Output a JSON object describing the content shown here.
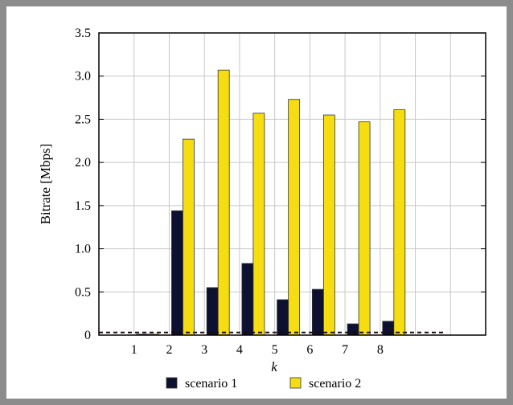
{
  "chart_data": {
    "type": "bar",
    "title": "",
    "xlabel": "k",
    "ylabel": "Bitrate [Mbps]",
    "categories": [
      "1",
      "2",
      "3",
      "4",
      "5",
      "6",
      "7",
      "8"
    ],
    "x_range": [
      0,
      11
    ],
    "ylim": [
      0,
      3.5
    ],
    "yticks": [
      "0",
      "0.5",
      "1.0",
      "1.5",
      "2.0",
      "2.5",
      "3.0",
      "3.5"
    ],
    "yticks_values": [
      0,
      0.5,
      1.0,
      1.5,
      2.0,
      2.5,
      3.0,
      3.5
    ],
    "grid": true,
    "legend_position": "bottom",
    "series": [
      {
        "name": "scenario 1",
        "color": "#0d1030",
        "values": [
          0.01,
          1.44,
          0.55,
          0.83,
          0.41,
          0.53,
          0.13,
          0.16
        ]
      },
      {
        "name": "scenario 2",
        "color": "#f5dd12",
        "values": [
          0.01,
          2.27,
          3.07,
          2.57,
          2.73,
          2.55,
          2.47,
          2.61
        ]
      }
    ],
    "reference_line": {
      "value": 0.03,
      "style": "dashed",
      "color": "#1a0a0a"
    }
  }
}
